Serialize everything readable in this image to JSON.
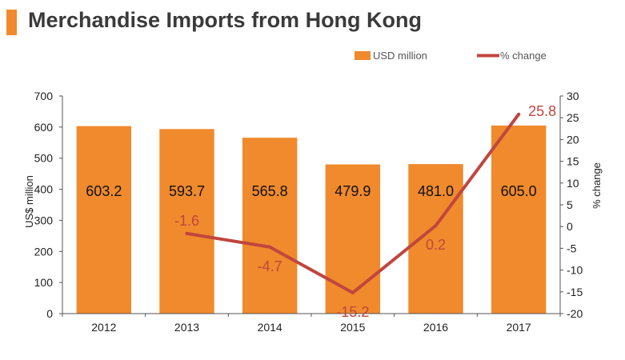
{
  "title": "Merchandise Imports from Hong Kong",
  "chart_data": {
    "type": "bar",
    "categories": [
      "2012",
      "2013",
      "2014",
      "2015",
      "2016",
      "2017"
    ],
    "series": [
      {
        "name": "USD million",
        "type": "bar",
        "axis": "left",
        "values": [
          603.2,
          593.7,
          565.8,
          479.9,
          481.0,
          605.0
        ],
        "labels": [
          "603.2",
          "593.7",
          "565.8",
          "479.9",
          "481.0",
          "605.0"
        ],
        "color": "#f08a2c"
      },
      {
        "name": "% change",
        "type": "line",
        "axis": "right",
        "values": [
          null,
          -1.6,
          -4.7,
          -15.2,
          0.2,
          25.8
        ],
        "labels": [
          "",
          "-1.6",
          "-4.7",
          "-15.2",
          "0.2",
          "25.8"
        ],
        "color": "#c0463f"
      }
    ],
    "ylabel": "US$ million",
    "y2label": "% change",
    "ylim": [
      0,
      700
    ],
    "y2lim": [
      -20,
      30
    ],
    "yticks": [
      "0",
      "100",
      "200",
      "300",
      "400",
      "500",
      "600",
      "700"
    ],
    "y2ticks": [
      "-20",
      "-15",
      "-10",
      "-5",
      "0",
      "5",
      "10",
      "15",
      "20",
      "25",
      "30"
    ],
    "legend_position": "top-right",
    "grid": false
  }
}
